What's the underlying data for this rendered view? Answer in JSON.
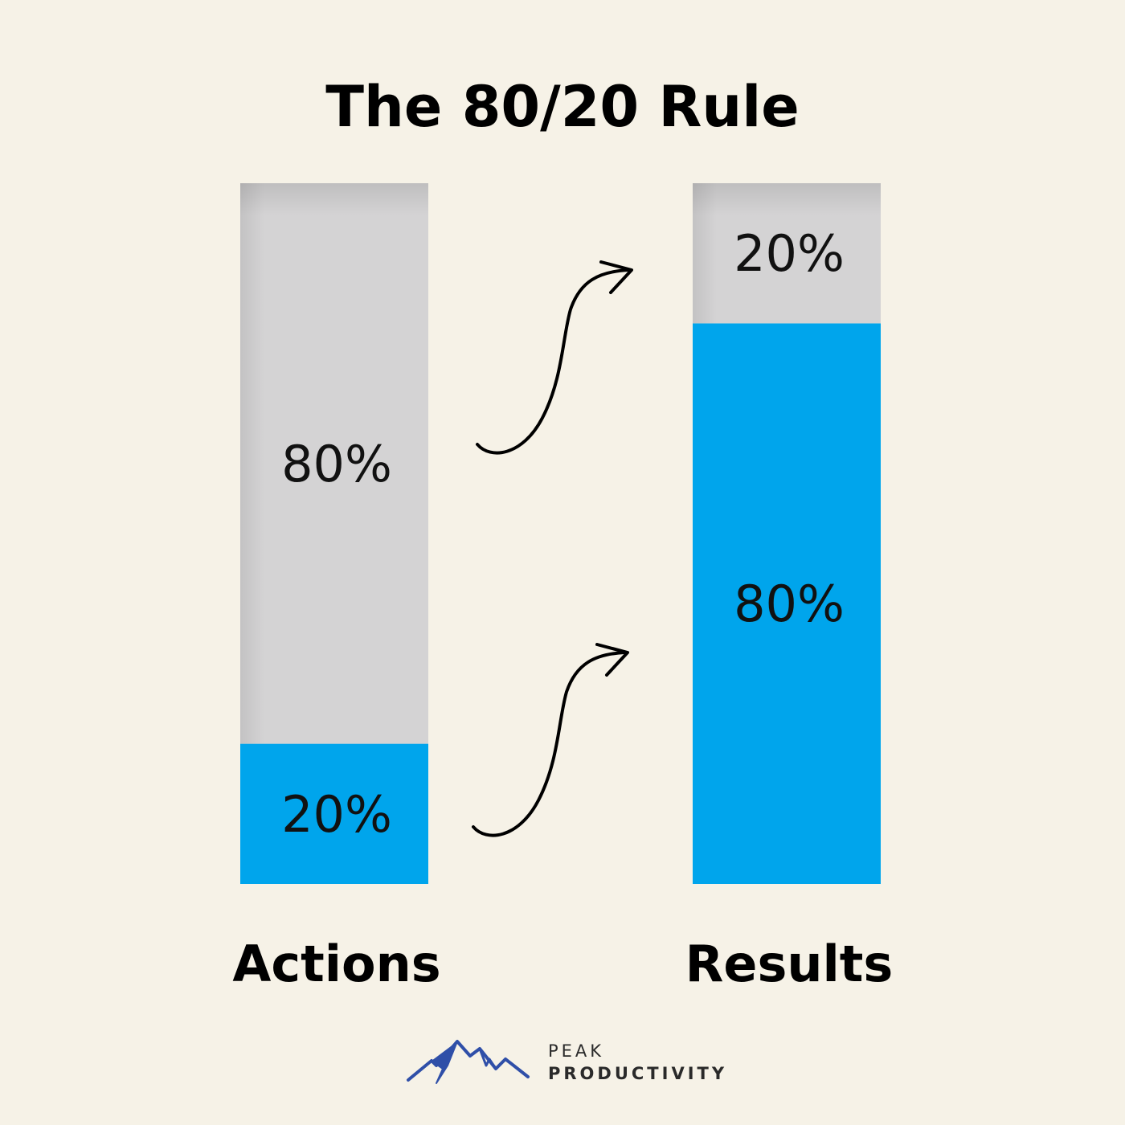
{
  "title": "The 80/20 Rule",
  "chart_data": {
    "type": "bar",
    "stacked": true,
    "title": "The 80/20 Rule",
    "categories": [
      "Actions",
      "Results"
    ],
    "series": [
      {
        "values": [
          20,
          80
        ],
        "labels": [
          "20%",
          "80%"
        ],
        "color": "#00a5ec"
      },
      {
        "values": [
          80,
          20
        ],
        "labels": [
          "80%",
          "20%"
        ],
        "color": "#d4d3d4"
      }
    ],
    "ylim": [
      0,
      100
    ],
    "grid": false,
    "annotations": [
      "arrow from Actions 20% to Results 80%",
      "arrow from Actions 80% to Results 20%"
    ]
  },
  "colors": {
    "background": "#f6f2e7",
    "accent": "#00a5ec",
    "neutral": "#d4d3d4",
    "logo": "#2f4fa8"
  },
  "logo": {
    "line1": "PEAK",
    "line2": "PRODUCTIVITY",
    "icon": "mountain-peaks-icon"
  }
}
